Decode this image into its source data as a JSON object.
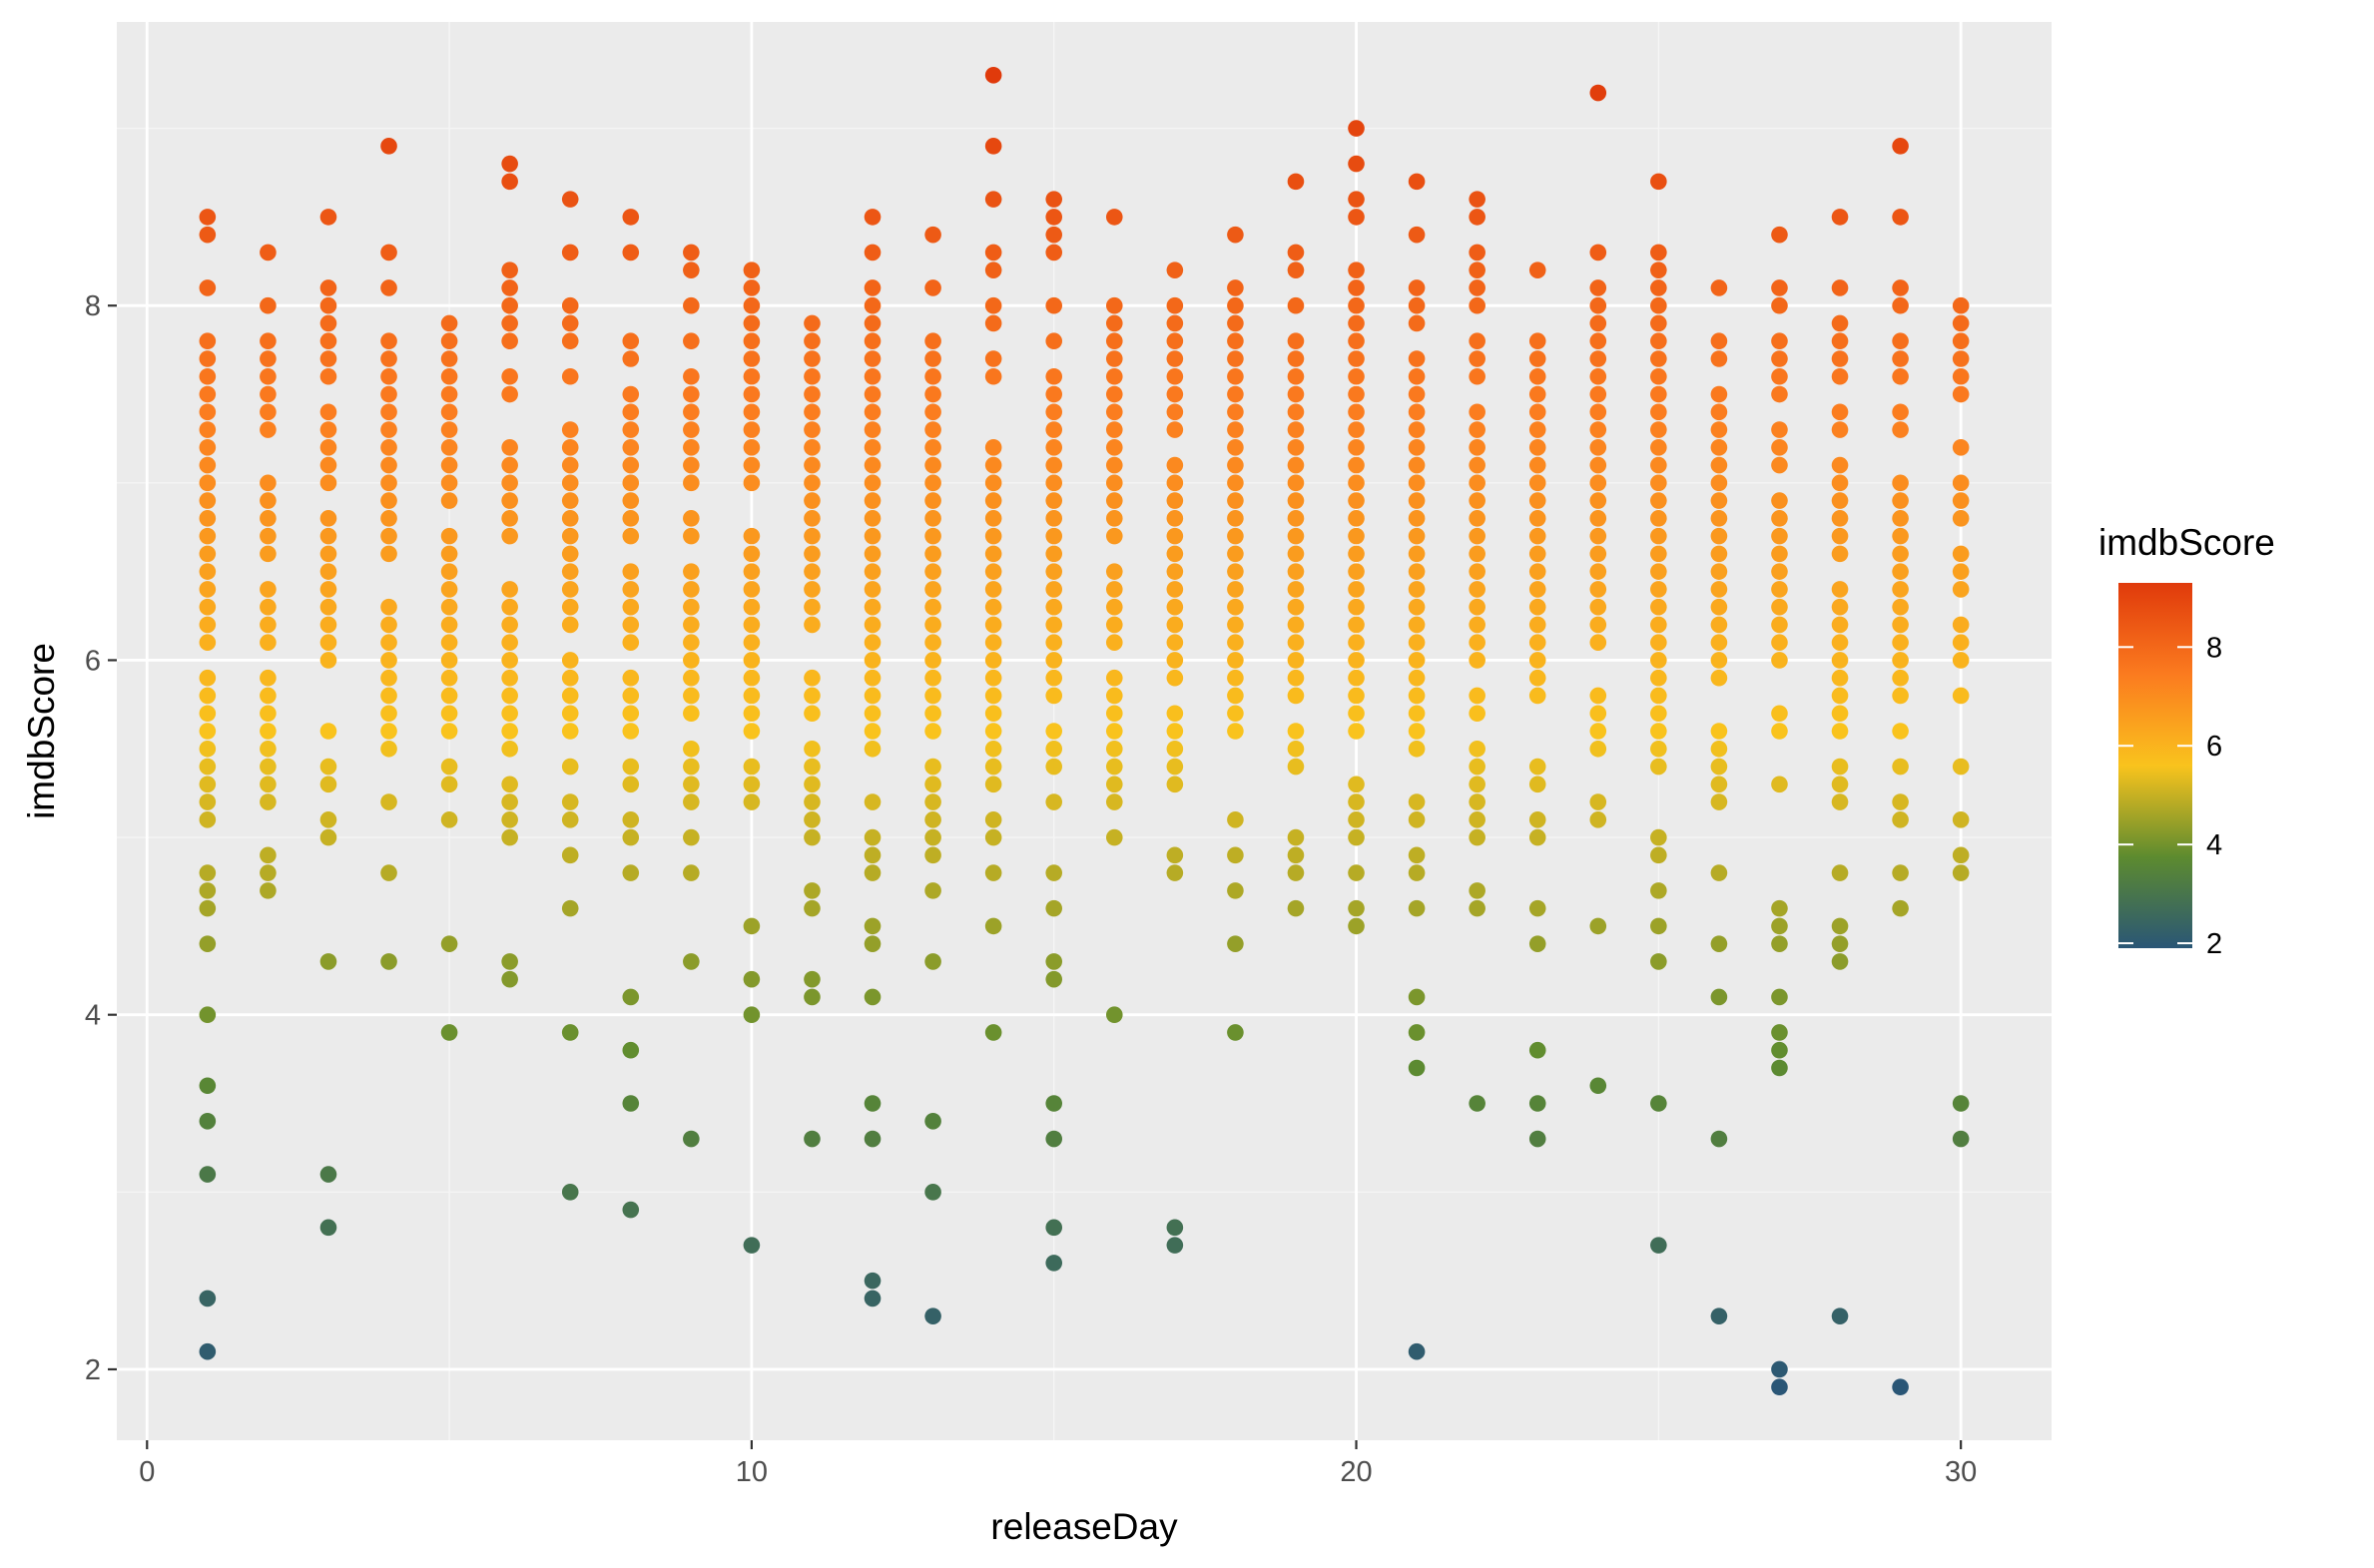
{
  "chart_data": {
    "type": "scatter",
    "title": "",
    "xlabel": "releaseDay",
    "ylabel": "imdbScore",
    "xlim": [
      -0.5,
      31.5
    ],
    "ylim": [
      1.6,
      9.6
    ],
    "x_ticks": [
      0,
      10,
      20,
      30
    ],
    "x_tick_labels": [
      "0",
      "10",
      "20",
      "30"
    ],
    "y_ticks": [
      2,
      4,
      6,
      8
    ],
    "y_tick_labels": [
      "2",
      "4",
      "6",
      "8"
    ],
    "grid": true,
    "legend": {
      "title": "imdbScore",
      "placement": "right",
      "type": "colorbar",
      "breaks": [
        2,
        4,
        6,
        8
      ],
      "break_labels": [
        "2",
        "4",
        "6",
        "8"
      ],
      "range": [
        1.9,
        9.3
      ],
      "colors": [
        "#2a5676",
        "#5d8b2f",
        "#f9c31d",
        "#fb7b1f",
        "#e03a0b"
      ]
    },
    "colors": {
      "panel_background": "#ebebeb",
      "grid_major": "#ffffff",
      "grid_minor": "#f5f5f5"
    },
    "series": [
      {
        "x": 1,
        "values": [
          8.5,
          8.4,
          8.1,
          7.8,
          7.7,
          7.6,
          7.5,
          7.4,
          7.3,
          7.2,
          7.1,
          7.0,
          6.9,
          6.8,
          6.7,
          6.6,
          6.5,
          6.4,
          6.3,
          6.2,
          6.1,
          5.9,
          5.8,
          5.7,
          5.6,
          5.5,
          5.4,
          5.3,
          5.2,
          5.1,
          4.8,
          4.7,
          4.6,
          4.4,
          4.0,
          3.6,
          3.4,
          3.1,
          2.4,
          2.1
        ]
      },
      {
        "x": 2,
        "values": [
          8.3,
          8.0,
          7.8,
          7.7,
          7.6,
          7.5,
          7.4,
          7.3,
          7.0,
          6.9,
          6.8,
          6.7,
          6.6,
          6.4,
          6.3,
          6.2,
          6.1,
          5.9,
          5.8,
          5.7,
          5.6,
          5.5,
          5.4,
          5.3,
          5.2,
          4.9,
          4.8,
          4.7
        ]
      },
      {
        "x": 3,
        "values": [
          8.5,
          8.1,
          8.0,
          7.9,
          7.8,
          7.7,
          7.6,
          7.4,
          7.3,
          7.2,
          7.1,
          7.0,
          6.8,
          6.7,
          6.6,
          6.5,
          6.4,
          6.3,
          6.2,
          6.1,
          6.0,
          5.6,
          5.4,
          5.3,
          5.1,
          5.0,
          4.3,
          3.1,
          2.8
        ]
      },
      {
        "x": 4,
        "values": [
          8.9,
          8.3,
          8.1,
          7.8,
          7.7,
          7.6,
          7.5,
          7.4,
          7.3,
          7.2,
          7.1,
          7.0,
          6.9,
          6.8,
          6.7,
          6.6,
          6.3,
          6.2,
          6.1,
          6.0,
          5.9,
          5.8,
          5.7,
          5.6,
          5.5,
          5.2,
          4.8,
          4.3
        ]
      },
      {
        "x": 5,
        "values": [
          7.9,
          7.8,
          7.7,
          7.6,
          7.5,
          7.4,
          7.3,
          7.2,
          7.1,
          7.0,
          6.9,
          6.7,
          6.6,
          6.5,
          6.4,
          6.3,
          6.2,
          6.1,
          6.0,
          5.9,
          5.8,
          5.7,
          5.6,
          5.4,
          5.3,
          5.1,
          4.4,
          3.9
        ]
      },
      {
        "x": 6,
        "values": [
          8.8,
          8.7,
          8.2,
          8.1,
          8.0,
          7.9,
          7.8,
          7.6,
          7.5,
          7.2,
          7.1,
          7.0,
          6.9,
          6.8,
          6.7,
          6.4,
          6.3,
          6.2,
          6.1,
          6.0,
          5.9,
          5.8,
          5.7,
          5.6,
          5.5,
          5.3,
          5.2,
          5.1,
          5.0,
          4.3,
          4.2
        ]
      },
      {
        "x": 7,
        "values": [
          8.6,
          8.3,
          8.0,
          7.9,
          7.8,
          7.6,
          7.3,
          7.2,
          7.1,
          7.0,
          6.9,
          6.8,
          6.7,
          6.6,
          6.5,
          6.4,
          6.3,
          6.2,
          6.0,
          5.9,
          5.8,
          5.7,
          5.6,
          5.4,
          5.2,
          5.1,
          4.9,
          4.6,
          3.9,
          3.0
        ]
      },
      {
        "x": 8,
        "values": [
          8.5,
          8.3,
          7.8,
          7.7,
          7.5,
          7.4,
          7.3,
          7.2,
          7.1,
          7.0,
          6.9,
          6.8,
          6.7,
          6.5,
          6.4,
          6.3,
          6.2,
          6.1,
          5.9,
          5.8,
          5.7,
          5.6,
          5.4,
          5.3,
          5.1,
          5.0,
          4.8,
          4.1,
          3.8,
          3.5,
          2.9
        ]
      },
      {
        "x": 9,
        "values": [
          8.3,
          8.2,
          8.0,
          7.8,
          7.6,
          7.5,
          7.4,
          7.3,
          7.2,
          7.1,
          7.0,
          6.8,
          6.7,
          6.5,
          6.4,
          6.3,
          6.2,
          6.1,
          6.0,
          5.9,
          5.8,
          5.7,
          5.5,
          5.4,
          5.3,
          5.2,
          5.0,
          4.8,
          4.3,
          3.3
        ]
      },
      {
        "x": 10,
        "values": [
          8.2,
          8.1,
          8.0,
          7.9,
          7.8,
          7.7,
          7.6,
          7.5,
          7.4,
          7.3,
          7.2,
          7.1,
          7.0,
          6.7,
          6.6,
          6.5,
          6.4,
          6.3,
          6.2,
          6.1,
          6.0,
          5.9,
          5.8,
          5.7,
          5.6,
          5.4,
          5.3,
          5.2,
          4.5,
          4.2,
          4.0,
          2.7
        ]
      },
      {
        "x": 11,
        "values": [
          7.9,
          7.8,
          7.7,
          7.6,
          7.5,
          7.4,
          7.3,
          7.2,
          7.1,
          7.0,
          6.9,
          6.8,
          6.7,
          6.6,
          6.5,
          6.4,
          6.3,
          6.2,
          5.9,
          5.8,
          5.7,
          5.5,
          5.4,
          5.3,
          5.2,
          5.1,
          5.0,
          4.7,
          4.6,
          4.2,
          4.1,
          3.3
        ]
      },
      {
        "x": 12,
        "values": [
          8.5,
          8.3,
          8.1,
          8.0,
          7.9,
          7.8,
          7.7,
          7.6,
          7.5,
          7.4,
          7.3,
          7.2,
          7.1,
          7.0,
          6.9,
          6.8,
          6.7,
          6.6,
          6.5,
          6.4,
          6.3,
          6.2,
          6.1,
          6.0,
          5.9,
          5.8,
          5.7,
          5.6,
          5.5,
          5.2,
          5.0,
          4.9,
          4.8,
          4.5,
          4.4,
          4.1,
          3.5,
          3.3,
          2.5,
          2.4
        ]
      },
      {
        "x": 13,
        "values": [
          8.4,
          8.1,
          7.8,
          7.7,
          7.6,
          7.5,
          7.4,
          7.3,
          7.2,
          7.1,
          7.0,
          6.9,
          6.8,
          6.7,
          6.6,
          6.5,
          6.4,
          6.3,
          6.2,
          6.1,
          6.0,
          5.9,
          5.8,
          5.7,
          5.6,
          5.4,
          5.3,
          5.2,
          5.1,
          5.0,
          4.9,
          4.7,
          4.3,
          3.4,
          3.0,
          2.3
        ]
      },
      {
        "x": 14,
        "values": [
          9.3,
          8.9,
          8.6,
          8.3,
          8.2,
          8.0,
          7.9,
          7.7,
          7.6,
          7.2,
          7.1,
          7.0,
          6.9,
          6.8,
          6.7,
          6.6,
          6.5,
          6.4,
          6.3,
          6.2,
          6.1,
          6.0,
          5.9,
          5.8,
          5.7,
          5.6,
          5.5,
          5.4,
          5.3,
          5.1,
          5.0,
          4.8,
          4.5,
          3.9
        ]
      },
      {
        "x": 15,
        "values": [
          8.6,
          8.5,
          8.4,
          8.3,
          8.0,
          7.8,
          7.6,
          7.5,
          7.4,
          7.3,
          7.2,
          7.1,
          7.0,
          6.9,
          6.8,
          6.7,
          6.6,
          6.5,
          6.4,
          6.3,
          6.2,
          6.1,
          6.0,
          5.9,
          5.8,
          5.6,
          5.5,
          5.4,
          5.2,
          4.8,
          4.6,
          4.3,
          4.2,
          3.5,
          3.3,
          2.8,
          2.6
        ]
      },
      {
        "x": 16,
        "values": [
          8.5,
          8.0,
          7.9,
          7.8,
          7.7,
          7.6,
          7.5,
          7.4,
          7.3,
          7.2,
          7.1,
          7.0,
          6.9,
          6.8,
          6.7,
          6.5,
          6.4,
          6.3,
          6.2,
          6.1,
          5.9,
          5.8,
          5.7,
          5.6,
          5.5,
          5.4,
          5.3,
          5.2,
          5.0,
          4.0
        ]
      },
      {
        "x": 17,
        "values": [
          8.2,
          8.0,
          7.9,
          7.8,
          7.7,
          7.6,
          7.5,
          7.4,
          7.3,
          7.1,
          7.0,
          6.9,
          6.8,
          6.7,
          6.6,
          6.5,
          6.4,
          6.3,
          6.2,
          6.1,
          6.0,
          5.9,
          5.7,
          5.6,
          5.5,
          5.4,
          5.3,
          4.9,
          4.8,
          2.8,
          2.7
        ]
      },
      {
        "x": 18,
        "values": [
          8.4,
          8.1,
          8.0,
          7.9,
          7.8,
          7.7,
          7.6,
          7.5,
          7.4,
          7.3,
          7.2,
          7.1,
          7.0,
          6.9,
          6.8,
          6.7,
          6.6,
          6.5,
          6.4,
          6.3,
          6.2,
          6.1,
          6.0,
          5.9,
          5.8,
          5.7,
          5.6,
          5.1,
          4.9,
          4.7,
          4.4,
          3.9
        ]
      },
      {
        "x": 19,
        "values": [
          8.7,
          8.3,
          8.2,
          8.0,
          7.8,
          7.7,
          7.6,
          7.5,
          7.4,
          7.3,
          7.2,
          7.1,
          7.0,
          6.9,
          6.8,
          6.7,
          6.6,
          6.5,
          6.4,
          6.3,
          6.2,
          6.1,
          6.0,
          5.9,
          5.8,
          5.6,
          5.5,
          5.4,
          5.0,
          4.9,
          4.8,
          4.6
        ]
      },
      {
        "x": 20,
        "values": [
          9.0,
          8.8,
          8.6,
          8.5,
          8.2,
          8.1,
          8.0,
          7.9,
          7.8,
          7.7,
          7.6,
          7.5,
          7.4,
          7.3,
          7.2,
          7.1,
          7.0,
          6.9,
          6.8,
          6.7,
          6.6,
          6.5,
          6.4,
          6.3,
          6.2,
          6.1,
          6.0,
          5.9,
          5.8,
          5.7,
          5.6,
          5.3,
          5.2,
          5.1,
          5.0,
          4.8,
          4.6,
          4.5
        ]
      },
      {
        "x": 21,
        "values": [
          8.7,
          8.4,
          8.1,
          8.0,
          7.9,
          7.7,
          7.6,
          7.5,
          7.4,
          7.3,
          7.2,
          7.1,
          7.0,
          6.9,
          6.8,
          6.7,
          6.6,
          6.5,
          6.4,
          6.3,
          6.2,
          6.1,
          6.0,
          5.9,
          5.8,
          5.7,
          5.6,
          5.5,
          5.2,
          5.1,
          4.9,
          4.8,
          4.6,
          4.1,
          3.9,
          3.7,
          2.1
        ]
      },
      {
        "x": 22,
        "values": [
          8.6,
          8.5,
          8.3,
          8.2,
          8.1,
          8.0,
          7.8,
          7.7,
          7.6,
          7.4,
          7.3,
          7.2,
          7.1,
          7.0,
          6.9,
          6.8,
          6.7,
          6.6,
          6.5,
          6.4,
          6.3,
          6.2,
          6.1,
          6.0,
          5.8,
          5.7,
          5.5,
          5.4,
          5.3,
          5.2,
          5.1,
          5.0,
          4.7,
          4.6,
          3.5
        ]
      },
      {
        "x": 23,
        "values": [
          8.2,
          7.8,
          7.7,
          7.6,
          7.5,
          7.4,
          7.3,
          7.2,
          7.1,
          7.0,
          6.9,
          6.8,
          6.7,
          6.6,
          6.5,
          6.4,
          6.3,
          6.2,
          6.1,
          6.0,
          5.9,
          5.8,
          5.4,
          5.3,
          5.1,
          5.0,
          4.6,
          4.4,
          3.8,
          3.5,
          3.3
        ]
      },
      {
        "x": 24,
        "values": [
          9.2,
          8.3,
          8.1,
          8.0,
          7.9,
          7.8,
          7.7,
          7.6,
          7.5,
          7.4,
          7.3,
          7.2,
          7.1,
          7.0,
          6.9,
          6.8,
          6.7,
          6.6,
          6.5,
          6.4,
          6.3,
          6.2,
          6.1,
          5.8,
          5.7,
          5.6,
          5.5,
          5.2,
          5.1,
          4.5,
          3.6
        ]
      },
      {
        "x": 25,
        "values": [
          8.7,
          8.3,
          8.2,
          8.1,
          8.0,
          7.9,
          7.8,
          7.7,
          7.6,
          7.5,
          7.4,
          7.3,
          7.2,
          7.1,
          7.0,
          6.9,
          6.8,
          6.7,
          6.6,
          6.5,
          6.4,
          6.3,
          6.2,
          6.1,
          6.0,
          5.9,
          5.8,
          5.7,
          5.6,
          5.5,
          5.4,
          5.0,
          4.9,
          4.7,
          4.5,
          4.3,
          3.5,
          2.7
        ]
      },
      {
        "x": 26,
        "values": [
          8.1,
          7.8,
          7.7,
          7.5,
          7.4,
          7.3,
          7.2,
          7.1,
          7.0,
          6.9,
          6.8,
          6.7,
          6.6,
          6.5,
          6.4,
          6.3,
          6.2,
          6.1,
          6.0,
          5.9,
          5.6,
          5.5,
          5.4,
          5.3,
          5.2,
          4.8,
          4.4,
          4.1,
          3.3,
          2.3
        ]
      },
      {
        "x": 27,
        "values": [
          8.4,
          8.1,
          8.0,
          7.8,
          7.7,
          7.6,
          7.5,
          7.3,
          7.2,
          7.1,
          6.9,
          6.8,
          6.7,
          6.6,
          6.5,
          6.4,
          6.3,
          6.2,
          6.1,
          6.0,
          5.7,
          5.6,
          5.3,
          4.6,
          4.5,
          4.4,
          4.1,
          3.9,
          3.8,
          3.7,
          2.0,
          1.9
        ]
      },
      {
        "x": 28,
        "values": [
          8.5,
          8.1,
          7.9,
          7.8,
          7.7,
          7.6,
          7.4,
          7.3,
          7.1,
          7.0,
          6.9,
          6.8,
          6.7,
          6.6,
          6.4,
          6.3,
          6.2,
          6.1,
          6.0,
          5.9,
          5.8,
          5.7,
          5.6,
          5.4,
          5.3,
          5.2,
          4.8,
          4.5,
          4.4,
          4.3,
          2.3
        ]
      },
      {
        "x": 29,
        "values": [
          8.9,
          8.5,
          8.1,
          8.0,
          7.8,
          7.7,
          7.6,
          7.4,
          7.3,
          7.0,
          6.9,
          6.8,
          6.7,
          6.6,
          6.5,
          6.4,
          6.3,
          6.2,
          6.1,
          6.0,
          5.9,
          5.8,
          5.6,
          5.4,
          5.2,
          5.1,
          4.8,
          4.6,
          1.9
        ]
      },
      {
        "x": 30,
        "values": [
          8.0,
          7.9,
          7.8,
          7.7,
          7.6,
          7.5,
          7.2,
          7.0,
          6.9,
          6.8,
          6.6,
          6.5,
          6.4,
          6.2,
          6.1,
          6.0,
          5.8,
          5.4,
          5.1,
          4.9,
          4.8,
          3.5,
          3.3
        ]
      }
    ]
  }
}
